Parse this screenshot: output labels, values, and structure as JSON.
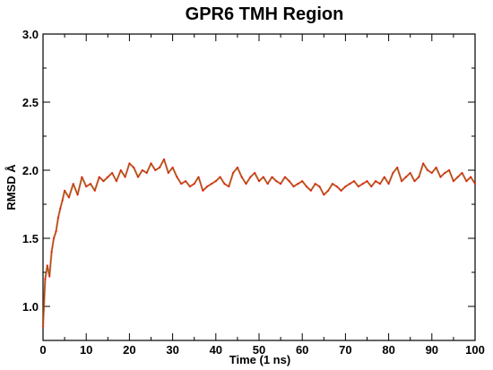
{
  "chart_data": {
    "type": "line",
    "title": "GPR6 TMH Region",
    "xlabel": "Time (1 ns)",
    "ylabel": "RMSD Å",
    "xlim": [
      0,
      100
    ],
    "ylim": [
      0.75,
      3.0
    ],
    "xticks": [
      "0",
      "10",
      "20",
      "30",
      "40",
      "50",
      "60",
      "70",
      "80",
      "90",
      "100"
    ],
    "yticks": [
      "1.0",
      "1.5",
      "2.0",
      "2.5",
      "3.0"
    ],
    "grid": false,
    "series": [
      {
        "color": "#8b5a00",
        "accent_color": "#ff0000",
        "x": [
          0,
          0.5,
          1,
          1.5,
          2,
          2.5,
          3,
          3.5,
          4,
          4.5,
          5,
          6,
          7,
          8,
          9,
          10,
          11,
          12,
          13,
          14,
          15,
          16,
          17,
          18,
          19,
          20,
          21,
          22,
          23,
          24,
          25,
          26,
          27,
          28,
          29,
          30,
          31,
          32,
          33,
          34,
          35,
          36,
          37,
          38,
          39,
          40,
          41,
          42,
          43,
          44,
          45,
          46,
          47,
          48,
          49,
          50,
          51,
          52,
          53,
          54,
          55,
          56,
          57,
          58,
          59,
          60,
          61,
          62,
          63,
          64,
          65,
          66,
          67,
          68,
          69,
          70,
          71,
          72,
          73,
          74,
          75,
          76,
          77,
          78,
          79,
          80,
          81,
          82,
          83,
          84,
          85,
          86,
          87,
          88,
          89,
          90,
          91,
          92,
          93,
          94,
          95,
          96,
          97,
          98,
          99,
          100
        ],
        "y": [
          0.85,
          1.2,
          1.3,
          1.22,
          1.4,
          1.5,
          1.55,
          1.65,
          1.72,
          1.78,
          1.85,
          1.8,
          1.9,
          1.82,
          1.95,
          1.88,
          1.9,
          1.85,
          1.95,
          1.92,
          1.95,
          1.98,
          1.92,
          2.0,
          1.95,
          2.05,
          2.02,
          1.95,
          2.0,
          1.98,
          2.05,
          2.0,
          2.02,
          2.08,
          1.98,
          2.02,
          1.95,
          1.9,
          1.92,
          1.88,
          1.9,
          1.95,
          1.85,
          1.88,
          1.9,
          1.92,
          1.95,
          1.9,
          1.88,
          1.98,
          2.02,
          1.95,
          1.9,
          1.95,
          1.98,
          1.92,
          1.95,
          1.9,
          1.95,
          1.92,
          1.9,
          1.95,
          1.92,
          1.88,
          1.9,
          1.92,
          1.88,
          1.85,
          1.9,
          1.88,
          1.82,
          1.85,
          1.9,
          1.88,
          1.85,
          1.88,
          1.9,
          1.92,
          1.88,
          1.9,
          1.92,
          1.88,
          1.92,
          1.9,
          1.95,
          1.9,
          1.98,
          2.02,
          1.92,
          1.95,
          1.98,
          1.92,
          1.95,
          2.05,
          2.0,
          1.98,
          2.02,
          1.95,
          1.98,
          2.0,
          1.92,
          1.95,
          1.98,
          1.92,
          1.95,
          1.9
        ]
      }
    ]
  }
}
